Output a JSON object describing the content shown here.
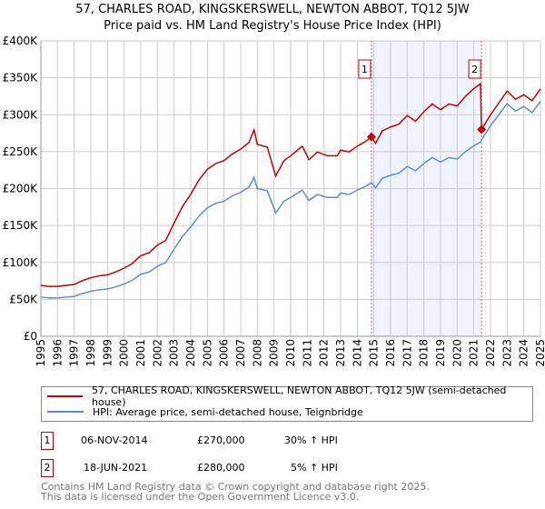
{
  "title": "57, CHARLES ROAD, KINGSKERSWELL, NEWTON ABBOT, TQ12 5JW",
  "subtitle": "Price paid vs. HM Land Registry's House Price Index (HPI)",
  "colors": {
    "property": "#cc0000",
    "hpi": "#5b8fd4",
    "shade": "#eef3fc",
    "grid": "#cccccc"
  },
  "chart_data": {
    "type": "line",
    "xlim": [
      1995,
      2025
    ],
    "ylim": [
      0,
      400000
    ],
    "y_ticks": [
      0,
      50000,
      100000,
      150000,
      200000,
      250000,
      300000,
      350000,
      400000
    ],
    "y_tick_labels": [
      "£0",
      "£50K",
      "£100K",
      "£150K",
      "£200K",
      "£250K",
      "£300K",
      "£350K",
      "£400K"
    ],
    "x_ticks": [
      "1995",
      "1996",
      "1997",
      "1998",
      "1999",
      "2000",
      "2001",
      "2002",
      "2003",
      "2004",
      "2005",
      "2006",
      "2007",
      "2008",
      "2009",
      "2010",
      "2011",
      "2012",
      "2013",
      "2014",
      "2015",
      "2016",
      "2017",
      "2018",
      "2019",
      "2020",
      "2021",
      "2022",
      "2023",
      "2024",
      "2025"
    ],
    "grid": true,
    "legend_position": "bottom",
    "series": [
      {
        "name": "57, CHARLES ROAD, KINGSKERSWELL, NEWTON ABBOT, TQ12 5JW (semi-detached house)",
        "color": "#cc0000",
        "x": [
          1995,
          1995.5,
          1996,
          1996.5,
          1997,
          1997.5,
          1998,
          1998.5,
          1999,
          1999.5,
          2000,
          2000.5,
          2001,
          2001.5,
          2002,
          2002.5,
          2003,
          2003.5,
          2004,
          2004.5,
          2005,
          2005.5,
          2006,
          2006.5,
          2007,
          2007.5,
          2007.8,
          2008,
          2008.6,
          2009.1,
          2009.6,
          2010,
          2010.7,
          2011.1,
          2011.6,
          2012.2,
          2012.8,
          2013,
          2013.5,
          2014,
          2014.5,
          2014.85,
          2015.1,
          2015.5,
          2016,
          2016.5,
          2017,
          2017.5,
          2018,
          2018.5,
          2019,
          2019.5,
          2020,
          2020.5,
          2021,
          2021.4,
          2021.46,
          2022,
          2022.5,
          2023,
          2023.5,
          2024,
          2024.5,
          2025
        ],
        "y": [
          69,
          67.6,
          67.6,
          68.9,
          70.2,
          75.4,
          79.3,
          81.9,
          83.2,
          87.1,
          92.3,
          98.8,
          109.2,
          113.1,
          123.5,
          130,
          153.4,
          175.5,
          192.4,
          211.9,
          226.2,
          234,
          237.9,
          247,
          253.5,
          262.6,
          279.5,
          260,
          256.1,
          217.1,
          237.9,
          244.4,
          257.4,
          239.2,
          249.6,
          244.4,
          244.4,
          252.2,
          249.6,
          257.4,
          263.9,
          270,
          261.3,
          278.2,
          283.4,
          287.3,
          299,
          291.2,
          304.2,
          314.6,
          306.8,
          314.6,
          312,
          325,
          335.4,
          342,
          280,
          300,
          316,
          332,
          321,
          327,
          319,
          335
        ],
        "y_unit": "thousand GBP"
      },
      {
        "name": "HPI: Average price, semi-detached house, Teignbridge",
        "color": "#5b8fd4",
        "x": [
          1995,
          1995.5,
          1996,
          1996.5,
          1997,
          1997.5,
          1998,
          1998.5,
          1999,
          1999.5,
          2000,
          2000.5,
          2001,
          2001.5,
          2002,
          2002.5,
          2003,
          2003.5,
          2004,
          2004.5,
          2005,
          2005.5,
          2006,
          2006.5,
          2007,
          2007.5,
          2007.8,
          2008,
          2008.6,
          2009.1,
          2009.6,
          2010,
          2010.7,
          2011.1,
          2011.6,
          2012.2,
          2012.8,
          2013,
          2013.5,
          2014,
          2014.5,
          2014.85,
          2015.1,
          2015.5,
          2016,
          2016.5,
          2017,
          2017.5,
          2018,
          2018.5,
          2019,
          2019.5,
          2020,
          2020.5,
          2021,
          2021.4,
          2021.46,
          2022,
          2022.5,
          2023,
          2023.5,
          2024,
          2024.5,
          2025
        ],
        "y": [
          53,
          52,
          52,
          53,
          54,
          58,
          61,
          63,
          64,
          67,
          71,
          76,
          84,
          87,
          95,
          100,
          118,
          135,
          148,
          163,
          174,
          180,
          183,
          190,
          195,
          202,
          215,
          200,
          197,
          167,
          183,
          188,
          198,
          184,
          192,
          188,
          188,
          194,
          192,
          198,
          203,
          208,
          201,
          214,
          218,
          221,
          230,
          224,
          234,
          242,
          236,
          242,
          240,
          250,
          258,
          263,
          266,
          285,
          300,
          315,
          305,
          311,
          303,
          318
        ],
        "y_unit": "thousand GBP"
      }
    ],
    "annotations": [
      {
        "label": "1",
        "x": 2014.85,
        "y": 270
      },
      {
        "label": "2",
        "x": 2021.46,
        "y": 280
      }
    ],
    "shaded_range": [
      2014.85,
      2021.46
    ]
  },
  "legend": {
    "property": "57, CHARLES ROAD, KINGSKERSWELL, NEWTON ABBOT, TQ12 5JW (semi-detached house)",
    "hpi": "HPI: Average price, semi-detached house, Teignbridge"
  },
  "transactions": [
    {
      "num": "1",
      "date": "06-NOV-2014",
      "price": "£270,000",
      "hpi": "30% ↑ HPI"
    },
    {
      "num": "2",
      "date": "18-JUN-2021",
      "price": "£280,000",
      "hpi": "5% ↑ HPI"
    }
  ],
  "footer": {
    "line1": "Contains HM Land Registry data © Crown copyright and database right 2025.",
    "line2": "This data is licensed under the Open Government Licence v3.0."
  }
}
